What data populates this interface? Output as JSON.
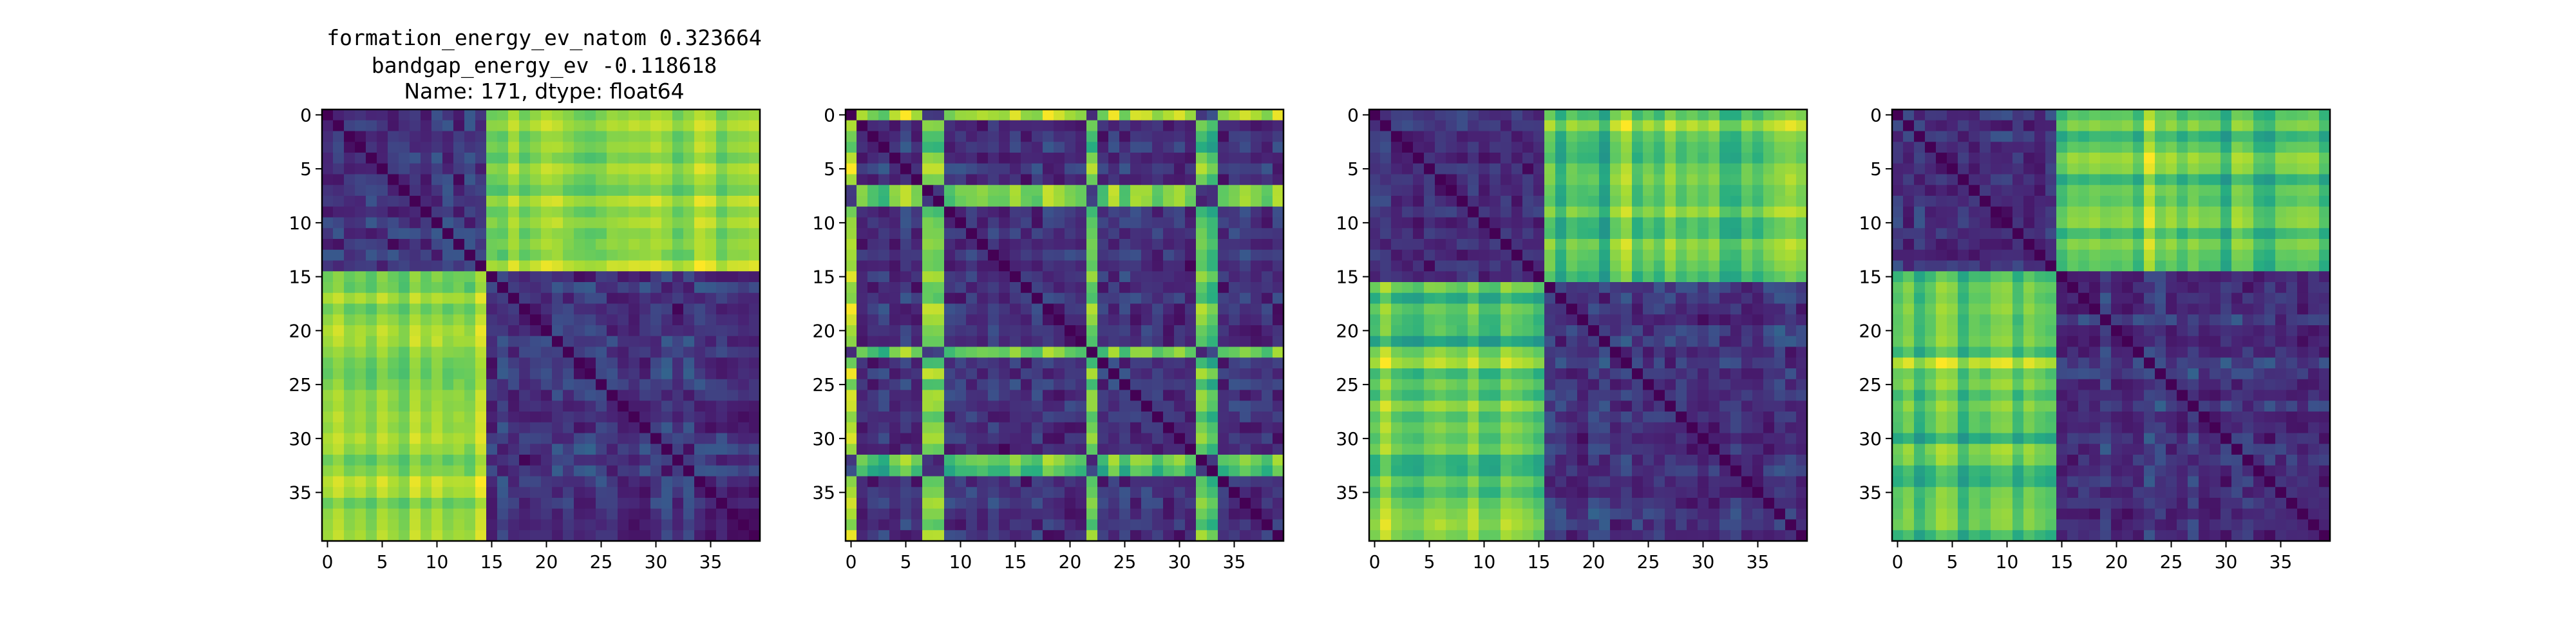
{
  "figure": {
    "title_lines": [
      "formation_energy_ev_natom    0.323664",
      "bandgap_energy_ev           -0.118618",
      "Name: 171, dtype: float64"
    ]
  },
  "chart_data": [
    {
      "type": "heatmap",
      "title": "",
      "size": 40,
      "colormap": "viridis",
      "xticks": [
        0,
        5,
        10,
        15,
        20,
        25,
        30,
        35
      ],
      "yticks": [
        0,
        5,
        10,
        15,
        20,
        25,
        30,
        35
      ],
      "xlim": [
        0,
        39
      ],
      "ylim": [
        39,
        0
      ],
      "structure": "distance matrix with zero diagonal; two blocks split at index 15 (0-14, 15-39); high values between blocks"
    },
    {
      "type": "heatmap",
      "title": "",
      "size": 40,
      "colormap": "viridis",
      "xticks": [
        0,
        5,
        10,
        15,
        20,
        25,
        30,
        35
      ],
      "yticks": [
        0,
        5,
        10,
        15,
        20,
        25,
        30,
        35
      ],
      "xlim": [
        0,
        39
      ],
      "ylim": [
        39,
        0
      ],
      "structure": "distance matrix with zero diagonal; scattered high-value bands at indices 0, 7-8, 22, 32-33"
    },
    {
      "type": "heatmap",
      "title": "",
      "size": 40,
      "colormap": "viridis",
      "xticks": [
        0,
        5,
        10,
        15,
        20,
        25,
        30,
        35
      ],
      "yticks": [
        0,
        5,
        10,
        15,
        20,
        25,
        30,
        35
      ],
      "xlim": [
        0,
        39
      ],
      "ylim": [
        39,
        0
      ],
      "structure": "distance matrix with zero diagonal; two blocks split at index 16 (0-15, 16-39); high values between blocks"
    },
    {
      "type": "heatmap",
      "title": "",
      "size": 40,
      "colormap": "viridis",
      "xticks": [
        0,
        5,
        10,
        15,
        20,
        25,
        30,
        35
      ],
      "yticks": [
        0,
        5,
        10,
        15,
        20,
        25,
        30,
        35
      ],
      "xlim": [
        0,
        39
      ],
      "ylim": [
        39,
        0
      ],
      "structure": "distance matrix with zero diagonal; two blocks split at index 15 (0-14, 15-39); high values between blocks"
    }
  ]
}
